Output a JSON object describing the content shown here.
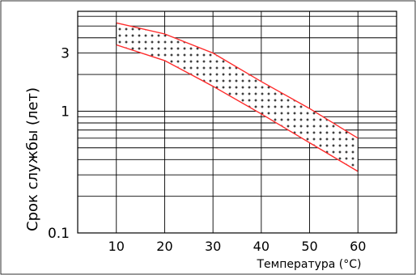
{
  "chart_data": {
    "type": "area",
    "xlabel": "Температура (°C)",
    "ylabel": "Срок службы (лет)",
    "x_ticks": [
      "10",
      "20",
      "30",
      "40",
      "50",
      "60"
    ],
    "y_ticks": [
      "0.1",
      "1",
      "3"
    ],
    "y_scale": "log",
    "ylim": [
      0.1,
      6.6
    ],
    "xlim": [
      2,
      68
    ],
    "grid": true,
    "band_fill": "cross-hatch pattern (+) on white",
    "colors": {
      "boundary": "#ff2a2a",
      "grid": "#000000",
      "markers": "#000000"
    },
    "series": [
      {
        "x": [
          10,
          20,
          30,
          40,
          50,
          60
        ],
        "values": [
          5.3,
          4.3,
          3.0,
          1.75,
          1.05,
          0.6
        ]
      },
      {
        "x": [
          10,
          20,
          30,
          40,
          50,
          60
        ],
        "values": [
          3.5,
          2.6,
          1.6,
          0.95,
          0.55,
          0.32
        ]
      }
    ]
  }
}
